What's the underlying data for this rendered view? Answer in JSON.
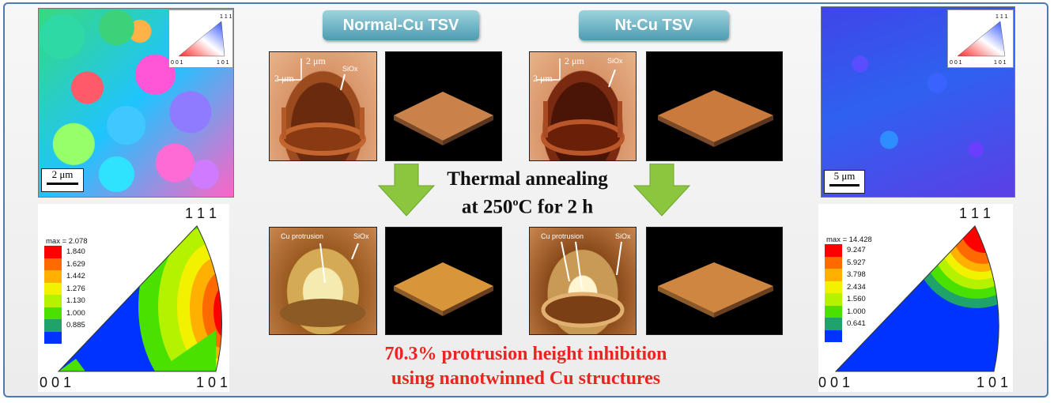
{
  "tags": {
    "normal": "Normal-Cu TSV",
    "nt": "Nt-Cu TSV"
  },
  "center": {
    "line1": "Thermal annealing",
    "line2_pre": "at 250",
    "line2_sup": "o",
    "line2_post": "C for 2 h"
  },
  "result": {
    "line1": "70.3% protrusion height inhibition",
    "line2": "using nanotwinned Cu structures"
  },
  "ebsd_left": {
    "scale": "2 μm",
    "key_111": "1 1 1",
    "key_001": "0 0 1",
    "key_101": "1 0 1"
  },
  "ebsd_right": {
    "scale": "5 μm",
    "key_111": "1 1 1",
    "key_001": "0 0 1",
    "key_101": "1 0 1"
  },
  "afm": {
    "axis_x": "2 μm",
    "axis_y": "2 μm",
    "siox": "SiOx",
    "cu_protrusion": "Cu protrusion"
  },
  "pole_left": {
    "label_111": "1 1 1",
    "label_001": "0 0 1",
    "label_101": "1 0 1",
    "max": "max = 2.078",
    "levels": [
      "1.840",
      "1.629",
      "1.442",
      "1.276",
      "1.130",
      "1.000",
      "0.885"
    ],
    "colors": [
      "#ff0000",
      "#ff6a00",
      "#ffb000",
      "#f2f200",
      "#b5f200",
      "#4ae000",
      "#1fa36a",
      "#0033ff"
    ]
  },
  "pole_right": {
    "label_111": "1 1 1",
    "label_001": "0 0 1",
    "label_101": "1 0 1",
    "max": "max = 14.428",
    "levels": [
      "9.247",
      "5.927",
      "3.798",
      "2.434",
      "1.560",
      "1.000",
      "0.641"
    ],
    "colors": [
      "#ff0000",
      "#ff6a00",
      "#ffb000",
      "#f2f200",
      "#b5f200",
      "#4ae000",
      "#1fa36a",
      "#0033ff"
    ]
  },
  "colors": {
    "frame": "#4f79b5",
    "tag": "#5fa9bc",
    "arrow": "#8cc63f",
    "result_text": "#e8251f"
  }
}
